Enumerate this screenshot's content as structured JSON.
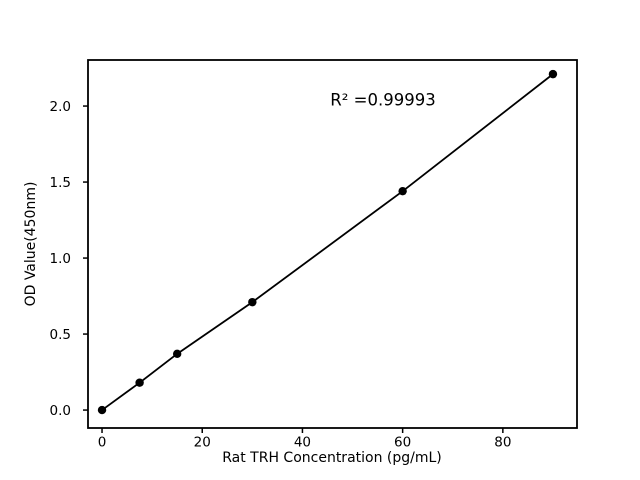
{
  "figure": {
    "background": "#ffffff",
    "foreground": "#000000"
  },
  "chart_data": {
    "type": "line",
    "title": "",
    "xlabel": "Rat TRH Concentration (pg/mL)",
    "ylabel": "OD Value(450nm)",
    "annotation": "R² =0.99993",
    "r_squared": 0.99993,
    "x": [
      0,
      7.5,
      15,
      30,
      60,
      90
    ],
    "y": [
      0.0,
      0.18,
      0.37,
      0.71,
      1.44,
      2.21
    ],
    "x_tick_labels": [
      "0",
      "20",
      "40",
      "60",
      "80"
    ],
    "x_tick_values": [
      0,
      20,
      40,
      60,
      80
    ],
    "y_tick_labels": [
      "0.0",
      "0.5",
      "1.0",
      "1.5",
      "2.0"
    ],
    "y_tick_values": [
      0.0,
      0.5,
      1.0,
      1.5,
      2.0
    ],
    "xlim": [
      -2.8,
      94.8
    ],
    "ylim": [
      -0.118,
      2.303
    ],
    "grid": false,
    "legend": "none",
    "line_color": "#000000",
    "marker_color": "#000000",
    "marker": "circle"
  }
}
